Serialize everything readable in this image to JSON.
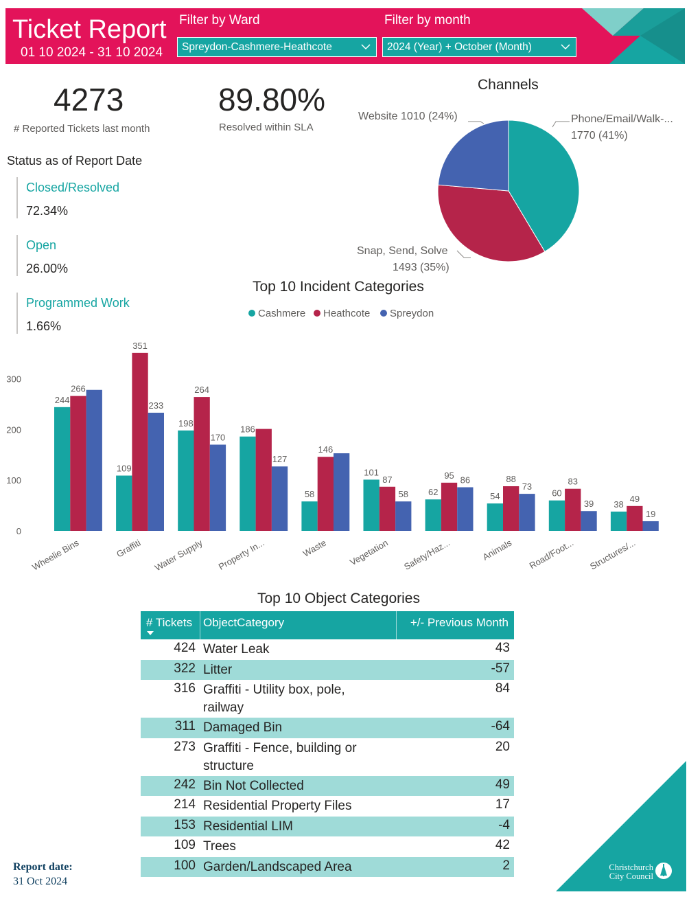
{
  "header": {
    "title": "Ticket Report",
    "date_range": "01 10 2024 - 31 10 2024",
    "filter_ward_label": "Filter by Ward",
    "filter_ward_value": "Spreydon-Cashmere-Heathcote",
    "filter_month_label": "Filter by month",
    "filter_month_value": "2024 (Year) + October (Month)",
    "colors": {
      "band": "#e3135a",
      "teal": "#16a5a2",
      "teal_light": "#7fcfc9"
    }
  },
  "kpis": {
    "reported": {
      "value": "4273",
      "label": "# Reported Tickets last month"
    },
    "sla": {
      "value": "89.80%",
      "label": "Resolved within SLA"
    }
  },
  "status": {
    "heading": "Status as of Report Date",
    "items": [
      {
        "label": "Closed/Resolved",
        "value": "72.34%"
      },
      {
        "label": "Open",
        "value": "26.00%"
      },
      {
        "label": "Programmed Work",
        "value": "1.66%"
      }
    ]
  },
  "chart_data": [
    {
      "type": "pie",
      "title": "Channels",
      "slices": [
        {
          "label": "Phone/Email/Walk-...",
          "value": 1770,
          "value_label": "1770 (41%)",
          "color": "#16a5a2"
        },
        {
          "label": "Snap, Send, Solve",
          "value": 1493,
          "value_label": "1493 (35%)",
          "color": "#b5244a"
        },
        {
          "label": "Website 1010 (24%)",
          "value": 1010,
          "value_label": "",
          "color": "#4463b0"
        }
      ]
    },
    {
      "type": "bar",
      "title": "Top 10 Incident Categories",
      "categories": [
        "Wheelie Bins",
        "Graffiti",
        "Water Supply",
        "Property In...",
        "Waste",
        "Vegetation",
        "Safety/Haz...",
        "Animals",
        "Road/Foot...",
        "Structures/..."
      ],
      "series": [
        {
          "name": "Cashmere",
          "color": "#16a5a2",
          "values": [
            244,
            109,
            198,
            186,
            58,
            101,
            62,
            54,
            60,
            38
          ],
          "labels": [
            "244",
            "109",
            "198",
            "186",
            "58",
            "101",
            "62",
            "54",
            "60",
            "38"
          ]
        },
        {
          "name": "Heathcote",
          "color": "#b5244a",
          "values": [
            266,
            351,
            264,
            201,
            146,
            87,
            95,
            88,
            83,
            49
          ],
          "labels": [
            "266",
            "351",
            "264",
            "",
            "146",
            "87",
            "95",
            "88",
            "83",
            "49"
          ]
        },
        {
          "name": "Spreydon",
          "color": "#4463b0",
          "values": [
            278,
            233,
            170,
            127,
            153,
            58,
            86,
            73,
            39,
            19
          ],
          "labels": [
            "",
            "233",
            "170",
            "127",
            "",
            "58",
            "86",
            "73",
            "39",
            "19"
          ]
        }
      ],
      "yticks": [
        "300",
        "200",
        "100",
        "0"
      ],
      "ylim": [
        0,
        370
      ],
      "grid": false,
      "legend": "top"
    }
  ],
  "table": {
    "title": "Top 10 Object Categories",
    "columns": [
      "# Tickets",
      "ObjectCategory",
      "+/- Previous Month"
    ],
    "rows": [
      [
        "424",
        "Water Leak",
        "43"
      ],
      [
        "322",
        "Litter",
        "-57"
      ],
      [
        "316",
        "Graffiti - Utility box, pole, railway",
        "84"
      ],
      [
        "311",
        "Damaged Bin",
        "-64"
      ],
      [
        "273",
        "Graffiti - Fence, building or structure",
        "20"
      ],
      [
        "242",
        "Bin Not Collected",
        "49"
      ],
      [
        "214",
        "Residential Property Files",
        "17"
      ],
      [
        "153",
        "Residential LIM",
        "-4"
      ],
      [
        "109",
        "Trees",
        "42"
      ],
      [
        "100",
        "Garden/Landscaped Area",
        "2"
      ]
    ]
  },
  "footer": {
    "report_date_label": "Report date:",
    "report_date_value": "31 Oct 2024",
    "logo_line1": "Christchurch",
    "logo_line2": "City Council"
  }
}
